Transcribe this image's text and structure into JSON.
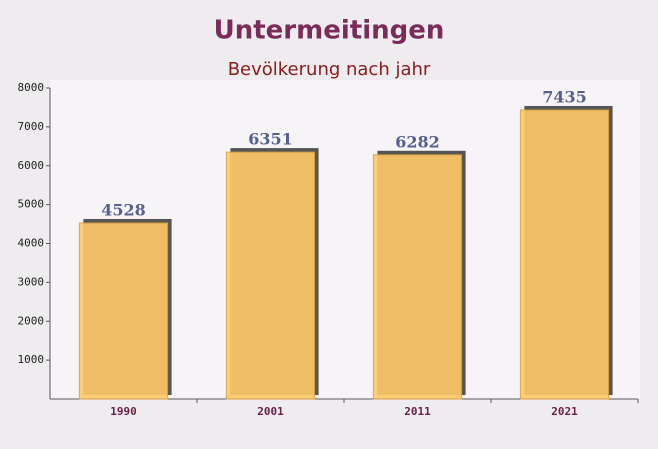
{
  "chart_data": {
    "type": "bar",
    "title": "Untermeitingen",
    "subtitle": "Bevölkerung nach jahr",
    "categories": [
      "1990",
      "2001",
      "2011",
      "2021"
    ],
    "values": [
      4528,
      6351,
      6282,
      7435
    ],
    "color": "#ffc966",
    "ylim": [
      0,
      8000
    ],
    "yticks": [
      1000,
      2000,
      3000,
      4000,
      5000,
      6000,
      7000,
      8000
    ]
  }
}
